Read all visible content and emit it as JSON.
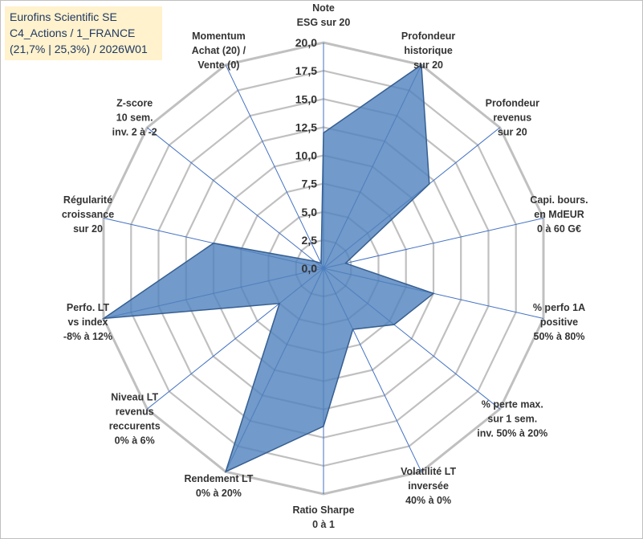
{
  "chart_data": {
    "type": "radar",
    "title": [
      "Eurofins Scientific SE",
      "C4_Actions / 1_FRANCE",
      "(21,7% | 25,3%) / 2026W01"
    ],
    "rlim": [
      0,
      20
    ],
    "ticks": [
      "0,0",
      "2,5",
      "5,0",
      "7,5",
      "10,0",
      "12,5",
      "15,0",
      "17,5",
      "20,0"
    ],
    "axes": [
      {
        "label": [
          "Note",
          "ESG sur 20"
        ],
        "value": 12
      },
      {
        "label": [
          "Profondeur",
          "historique",
          "sur 20"
        ],
        "value": 20
      },
      {
        "label": [
          "Profondeur",
          "revenus",
          "sur 20"
        ],
        "value": 12
      },
      {
        "label": [
          "Capi. bours.",
          "en MdEUR",
          "0 à 60 G€"
        ],
        "value": 2
      },
      {
        "label": [
          "% perfo 1A",
          "positive",
          "50% à 80%"
        ],
        "value": 10
      },
      {
        "label": [
          "% perte max.",
          "sur 1 sem.",
          "inv. 50% à 20%"
        ],
        "value": 8
      },
      {
        "label": [
          "Volatilité LT",
          "inversée",
          "40% à 0%"
        ],
        "value": 6
      },
      {
        "label": [
          "Ratio Sharpe",
          "0 à 1"
        ],
        "value": 14
      },
      {
        "label": [
          "Rendement LT",
          "0% à 20%"
        ],
        "value": 20
      },
      {
        "label": [
          "Niveau LT",
          "revenus",
          "reccurents",
          "0% à 6%"
        ],
        "value": 5
      },
      {
        "label": [
          "Perfo. LT",
          "vs index",
          "-8% à 12%"
        ],
        "value": 20
      },
      {
        "label": [
          "Régularité",
          "croissance",
          "sur 20"
        ],
        "value": 10
      },
      {
        "label": [
          "Z-score",
          "10 sem.",
          "inv. 2 à -2"
        ],
        "value": 1
      },
      {
        "label": [
          "Momentum",
          "Achat (20) /",
          "Vente (0)"
        ],
        "value": 0.5
      }
    ],
    "colors": {
      "fill": "#4f81bd",
      "fill_opacity": "0.8",
      "stroke": "#365f91",
      "grid": "#c0c0c0",
      "spoke": "#4472c4",
      "text": "#333333"
    }
  }
}
